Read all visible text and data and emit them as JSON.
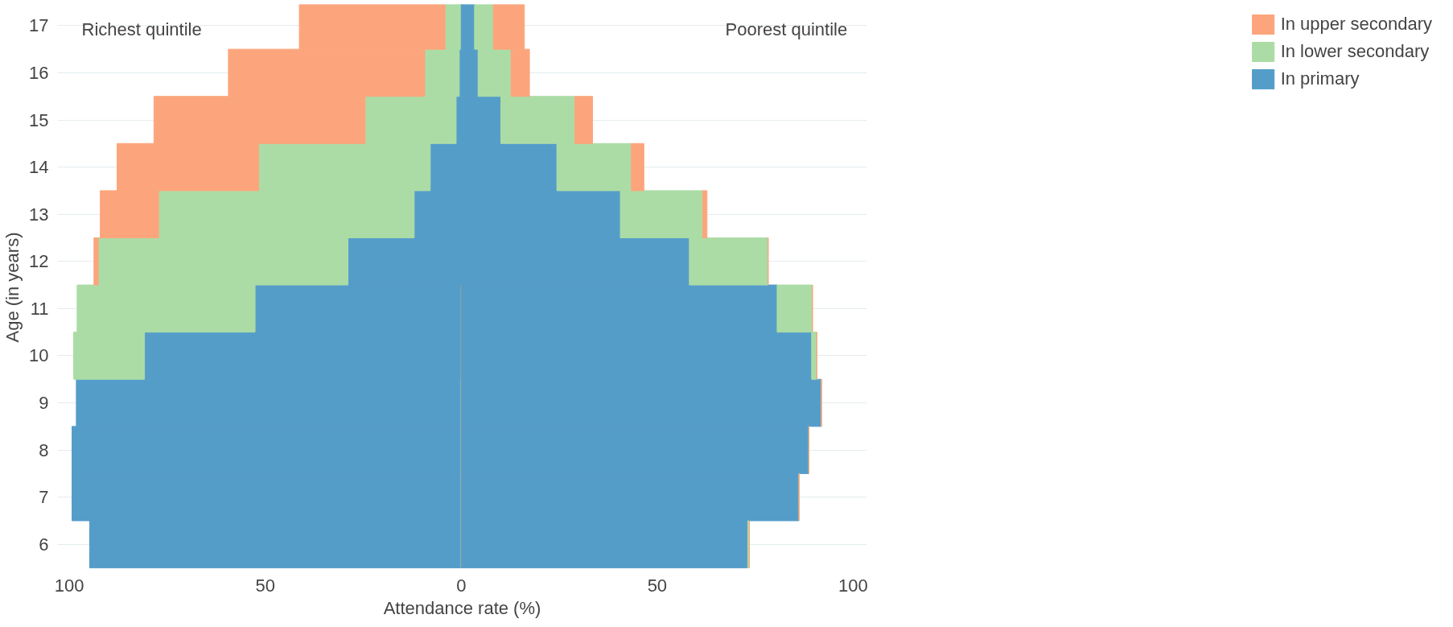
{
  "chart_data": {
    "type": "bar",
    "orientation": "horizontal",
    "stacked": true,
    "xlabel": "Attendance rate (%)",
    "ylabel": "Age (in years)",
    "categories": [
      "17",
      "16",
      "15",
      "14",
      "13",
      "12",
      "11",
      "10",
      "9",
      "8",
      "7",
      "6"
    ],
    "series": [
      {
        "name": "In primary",
        "color": "#559dc9",
        "values": [
          0,
          -0.5,
          -1.3,
          -7.9,
          -12.0,
          -28.9,
          -52.6,
          -80.8,
          -98.2,
          -99.3,
          -99.3,
          -94.8
        ]
      },
      {
        "name": "In lower secondary",
        "color": "#acdca6",
        "values": [
          -4.1,
          -8.8,
          -23.2,
          -43.8,
          -65.2,
          -63.7,
          -45.4,
          -18.1,
          0,
          0,
          0,
          0
        ]
      },
      {
        "name": "In upper secondary",
        "color": "#fca57c",
        "values": [
          -37.2,
          -50.1,
          -53.9,
          -36.1,
          -14.9,
          -1.1,
          0,
          0,
          0,
          0,
          0,
          0
        ]
      },
      {
        "color": "#559dc9",
        "values": [
          3.4,
          4.3,
          10.1,
          24.4,
          40.6,
          58.2,
          80.6,
          89.4,
          91.9,
          88.7,
          86.2,
          73.1
        ]
      },
      {
        "color": "#acdca6",
        "values": [
          4.8,
          8.4,
          18.9,
          19.0,
          21.0,
          20.1,
          9.0,
          1.3,
          0,
          0,
          0,
          0.4
        ]
      },
      {
        "color": "#fca57c",
        "values": [
          7.9,
          4.7,
          4.5,
          3.2,
          1.1,
          0,
          0,
          0,
          0,
          0,
          0,
          0
        ]
      }
    ],
    "xlim": [
      -103,
      103.5
    ],
    "xticks": [
      {
        "value": -100,
        "label": "100"
      },
      {
        "value": -50,
        "label": "50"
      },
      0,
      50,
      100
    ],
    "grid": "y",
    "legend": "right",
    "annotations": [
      "Richest quintile",
      "Poorest quintile"
    ]
  }
}
